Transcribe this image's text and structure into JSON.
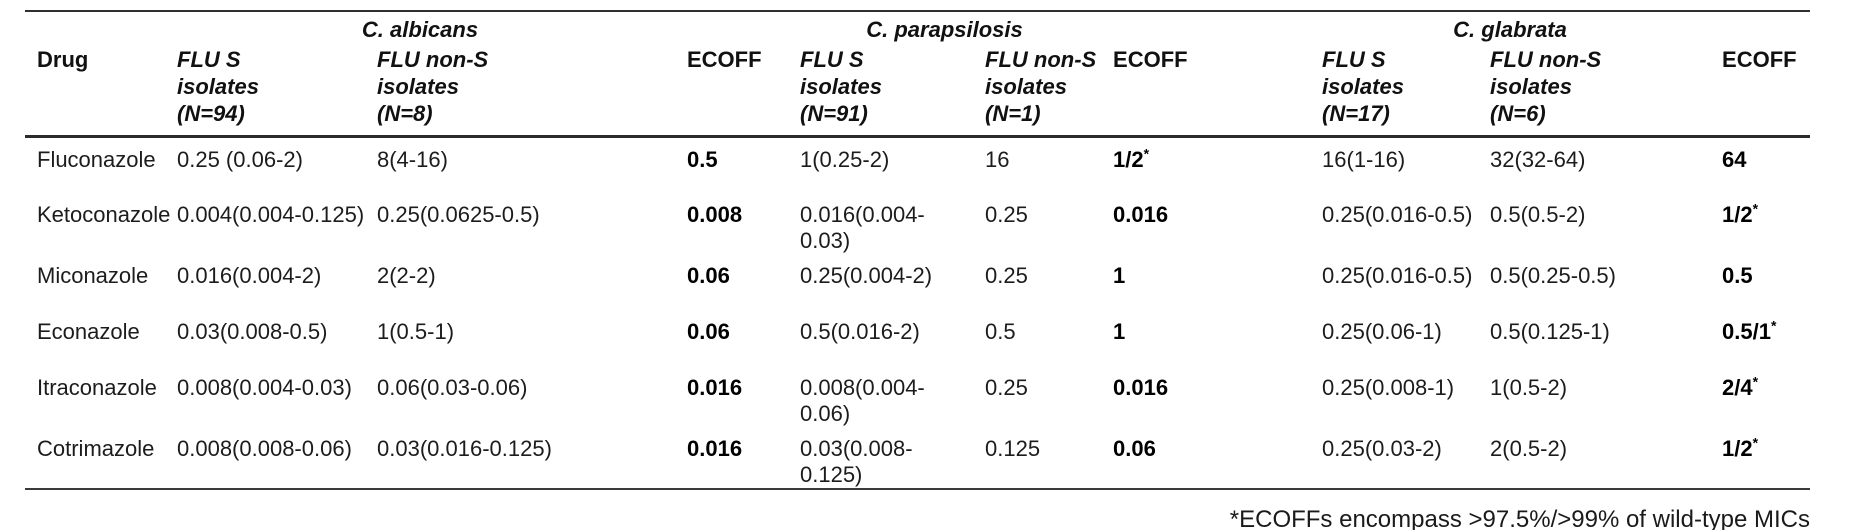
{
  "table": {
    "drug_col_header": "Drug",
    "ecoff_header": "ECOFF",
    "groups": [
      {
        "species": "C. albicans",
        "flu_s_header": "FLU S\nisolates\n(N=94)",
        "flu_non_s_header": "FLU non-S\nisolates\n(N=8)"
      },
      {
        "species": "C. parapsilosis",
        "flu_s_header": "FLU S\nisolates\n(N=91)",
        "flu_non_s_header": "FLU non-S\nisolates\n(N=1)"
      },
      {
        "species": "C. glabrata",
        "flu_s_header": "FLU S\nisolates\n(N=17)",
        "flu_non_s_header": "FLU non-S\nisolates\n(N=6)"
      }
    ],
    "rows": [
      {
        "drug": "Fluconazole",
        "cells": [
          {
            "text": "0.25 (0.06-2)"
          },
          {
            "text": "8(4-16)"
          },
          {
            "text": "0.5",
            "ecoff": true
          },
          {
            "text": "1(0.25-2)"
          },
          {
            "text": "16"
          },
          {
            "text": "1/2",
            "ecoff": true,
            "asterisk": true
          },
          {
            "text": "16(1-16)"
          },
          {
            "text": "32(32-64)"
          },
          {
            "text": "64",
            "ecoff": true
          }
        ]
      },
      {
        "drug": "Ketoconazole",
        "cells": [
          {
            "text": "0.004(0.004-0.125)"
          },
          {
            "text": "0.25(0.0625-0.5)"
          },
          {
            "text": "0.008",
            "ecoff": true
          },
          {
            "text": "0.016(0.004-0.03)"
          },
          {
            "text": "0.25"
          },
          {
            "text": "0.016",
            "ecoff": true
          },
          {
            "text": "0.25(0.016-0.5)"
          },
          {
            "text": "0.5(0.5-2)"
          },
          {
            "text": "1/2",
            "ecoff": true,
            "asterisk": true
          }
        ]
      },
      {
        "drug": "Miconazole",
        "cells": [
          {
            "text": "0.016(0.004-2)"
          },
          {
            "text": "2(2-2)"
          },
          {
            "text": "0.06",
            "ecoff": true
          },
          {
            "text": "0.25(0.004-2)"
          },
          {
            "text": "0.25"
          },
          {
            "text": "1",
            "ecoff": true
          },
          {
            "text": "0.25(0.016-0.5)"
          },
          {
            "text": "0.5(0.25-0.5)"
          },
          {
            "text": "0.5",
            "ecoff": true
          }
        ]
      },
      {
        "drug": "Econazole",
        "cells": [
          {
            "text": "0.03(0.008-0.5)"
          },
          {
            "text": "1(0.5-1)"
          },
          {
            "text": "0.06",
            "ecoff": true
          },
          {
            "text": "0.5(0.016-2)"
          },
          {
            "text": "0.5"
          },
          {
            "text": "1",
            "ecoff": true
          },
          {
            "text": "0.25(0.06-1)"
          },
          {
            "text": "0.5(0.125-1)"
          },
          {
            "text": "0.5/1",
            "ecoff": true,
            "asterisk": true
          }
        ]
      },
      {
        "drug": "Itraconazole",
        "cells": [
          {
            "text": "0.008(0.004-0.03)"
          },
          {
            "text": "0.06(0.03-0.06)"
          },
          {
            "text": "0.016",
            "ecoff": true
          },
          {
            "text": "0.008(0.004-0.06)"
          },
          {
            "text": "0.25"
          },
          {
            "text": "0.016",
            "ecoff": true
          },
          {
            "text": "0.25(0.008-1)"
          },
          {
            "text": "1(0.5-2)"
          },
          {
            "text": "2/4",
            "ecoff": true,
            "asterisk": true
          }
        ]
      },
      {
        "drug": "Cotrimazole",
        "cells": [
          {
            "text": "0.008(0.008-0.06)"
          },
          {
            "text": "0.03(0.016-0.125)"
          },
          {
            "text": "0.016",
            "ecoff": true
          },
          {
            "text": "0.03(0.008-0.125)"
          },
          {
            "text": "0.125"
          },
          {
            "text": "0.06",
            "ecoff": true
          },
          {
            "text": "0.25(0.03-2)"
          },
          {
            "text": "2(0.5-2)"
          },
          {
            "text": "1/2",
            "ecoff": true,
            "asterisk": true
          }
        ]
      }
    ]
  },
  "footnote": "*ECOFFs encompass >97.5%/>99% of wild-type MICs"
}
